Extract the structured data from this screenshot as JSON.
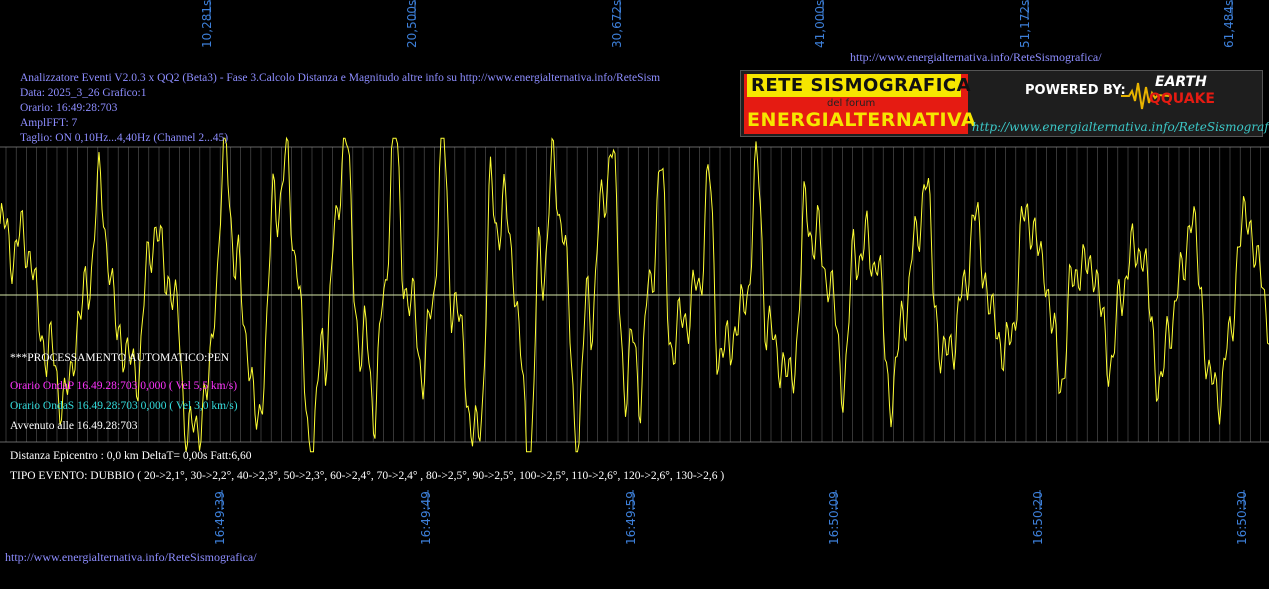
{
  "header": {
    "line1": "Analizzatore Eventi V2.0.3 x QQ2 (Beta3) - Fase 3.Calcolo Distanza e Magnitudo altre info su http://www.energialternativa.info/ReteSism",
    "line2": "Data: 2025_3_26 Grafico:1",
    "line3": "Orario: 16:49:28:703",
    "line4": "AmplFFT: 7",
    "line5": "Taglio: ON 0,10Hz...4,40Hz       (Channel 2...45)"
  },
  "top_url": "http://www.energialternativa.info/ReteSismografica/",
  "bottom_url": "http://www.energialternativa.info/ReteSismografica/",
  "banner": {
    "title1": "RETE SISMOGRAFICA",
    "title2": "del forum",
    "title3": "ENERGIALTERNATIVA",
    "powered": "POWERED BY:",
    "logo1": "EARTH",
    "logo2": "QQUAKE",
    "url": "http://www.energialternativa.info/ReteSismografica"
  },
  "processing": {
    "status": "***PROCESSAMENTO AUTOMATICO:PEN",
    "ondaP": "Orario OndaP 16.49.28:703  0,000 ( Vel 5,5 km/s)",
    "ondaS": "Orario OndaS 16.49.28:703  0,000 ( Vel 3,0 km/s)",
    "avvenuto": "Avvenuto alle 16.49.28:703",
    "distanza": "Distanza Epicentro : 0,0 km DeltaT= 0,00s  Fatt:6,60",
    "tipo": "TIPO EVENTO: DUBBIO ( 20->2,1°, 30->2,2°, 40->2,3°, 50->2,3°, 60->2,4°, 70->2,4° , 80->2,5°, 90->2,5°, 100->2,5°, 110->2,6°, 120->2,6°, 130->2,6 )"
  },
  "colors": {
    "trace": "#ffff33",
    "grid": "#5a5a5a",
    "baseline": "#d8e8a8",
    "ondaP": "#ff33ff",
    "ondaS": "#33dddd",
    "tick": "#3d7fd8"
  },
  "chart_data": {
    "type": "line",
    "title": "",
    "xlabel": "",
    "ylabel": "",
    "x_top_ticks": [
      "10,281s",
      "20,500s",
      "30,672s",
      "41,000s",
      "51,172s",
      "61,484s"
    ],
    "x_bottom_ticks": [
      "16:49:39",
      "16:49:49",
      "16:49:59",
      "16:50:09",
      "16:50:20",
      "16:50:30"
    ],
    "grid": true,
    "series": [
      {
        "values": [
          0.45,
          0.3,
          0.5,
          0.2,
          -0.1,
          -0.45,
          -0.7,
          -0.6,
          -0.3,
          0.2,
          0.7,
          0.3,
          -0.2,
          -0.6,
          -0.4,
          0.1,
          0.5,
          0.2,
          -0.3,
          -0.8,
          -1.1,
          -0.7,
          0.2,
          0.9,
          0.4,
          -0.4,
          -0.9,
          -0.3,
          0.6,
          1.1,
          0.2,
          -0.6,
          -1.05,
          -0.4,
          0.5,
          1.0,
          0.3,
          -0.5,
          -0.8,
          0.1,
          0.9,
          0.5,
          -0.3,
          -0.6,
          0.2,
          0.8,
          0.3,
          -0.5,
          -1.1,
          -0.5,
          0.4,
          0.9,
          0.2,
          -0.6,
          -0.9,
          0.0,
          1.05,
          0.5,
          -0.4,
          -0.8,
          -0.2,
          0.7,
          0.9,
          0.1,
          -0.6,
          -0.7,
          0.2,
          0.6,
          0.1,
          -0.4,
          -0.2,
          0.3,
          0.5,
          -0.1,
          -0.5,
          -0.3,
          0.3,
          0.6,
          0.0,
          -0.5,
          -0.7,
          -0.1,
          0.4,
          0.6,
          0.1,
          -0.3,
          -0.4,
          0.2,
          0.5,
          0.2,
          -0.4,
          -0.6,
          -0.2,
          0.5,
          0.7,
          0.1,
          -0.5,
          -0.4,
          0.2,
          0.4,
          0.3,
          -0.2,
          -0.5,
          -0.1,
          0.4,
          0.6,
          0.2,
          -0.3,
          -0.5,
          0.0,
          0.3,
          0.2,
          -0.2,
          -0.4,
          -0.1,
          0.4,
          0.3,
          -0.2,
          -0.6,
          -0.3,
          0.2,
          0.5,
          0.1,
          -0.6,
          -0.8,
          -0.2,
          0.3,
          0.6,
          0.2,
          -0.3
        ]
      }
    ]
  }
}
